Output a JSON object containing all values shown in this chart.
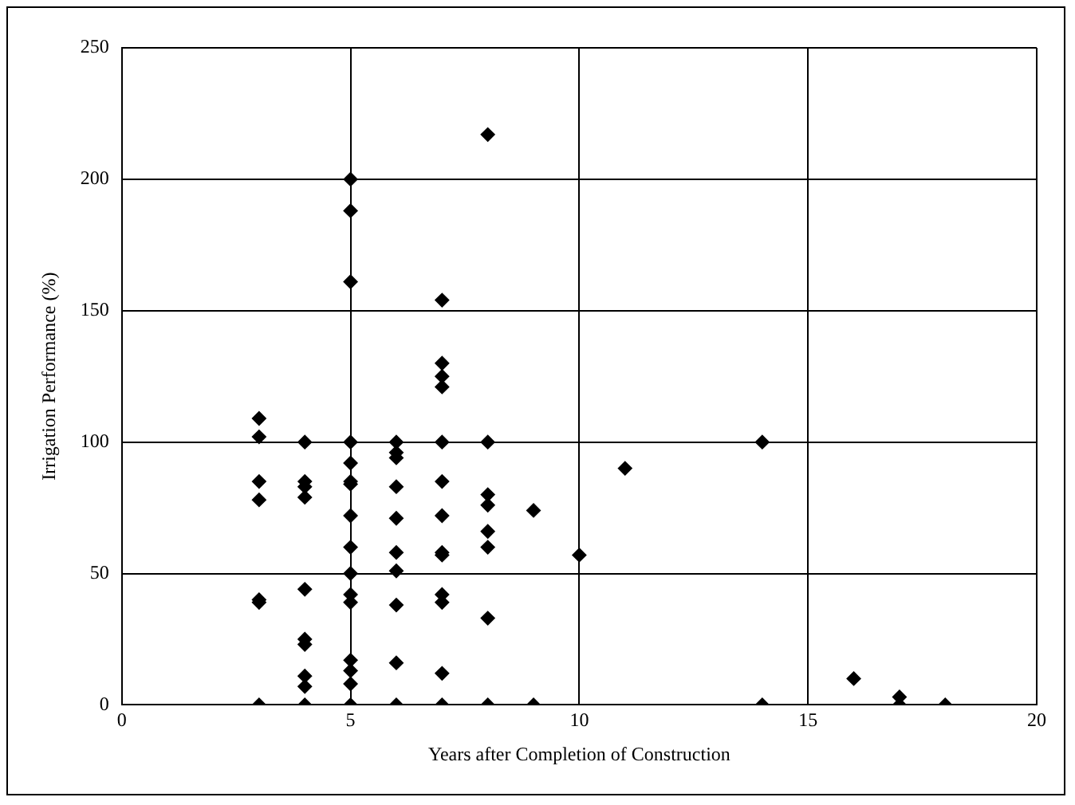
{
  "chart_data": {
    "type": "scatter",
    "xlabel": "Years after Completion of Construction",
    "ylabel": "Irrigation Performance (%)",
    "x": [
      3,
      3,
      3,
      3,
      3,
      3,
      3,
      4,
      4,
      4,
      4,
      4,
      4,
      4,
      4,
      4,
      4,
      5,
      5,
      5,
      5,
      5,
      5,
      5,
      5,
      5,
      5,
      5,
      5,
      5,
      5,
      5,
      5,
      6,
      6,
      6,
      6,
      6,
      6,
      6,
      6,
      6,
      6,
      7,
      7,
      7,
      7,
      7,
      7,
      7,
      7,
      7,
      7,
      7,
      7,
      7,
      8,
      8,
      8,
      8,
      8,
      8,
      8,
      8,
      9,
      9,
      10,
      11,
      14,
      14,
      16,
      17,
      17,
      18
    ],
    "values": [
      109,
      102,
      85,
      78,
      40,
      39,
      0,
      100,
      85,
      83,
      79,
      44,
      25,
      23,
      11,
      7,
      0,
      200,
      188,
      161,
      100,
      92,
      85,
      84,
      72,
      60,
      50,
      42,
      39,
      17,
      13,
      8,
      0,
      100,
      96,
      94,
      83,
      71,
      58,
      51,
      38,
      16,
      0,
      154,
      130,
      125,
      121,
      100,
      85,
      72,
      58,
      57,
      42,
      39,
      12,
      0,
      217,
      100,
      80,
      76,
      66,
      60,
      33,
      0,
      74,
      0,
      57,
      90,
      100,
      0,
      10,
      3,
      0,
      0
    ],
    "color": "#000000",
    "marker": "diamond",
    "xlim": [
      0,
      20
    ],
    "xticks": [
      0,
      5,
      10,
      15,
      20
    ],
    "ylim": [
      0,
      250
    ],
    "yticks": [
      0,
      50,
      100,
      150,
      200,
      250
    ],
    "grid": true,
    "legend": false
  }
}
